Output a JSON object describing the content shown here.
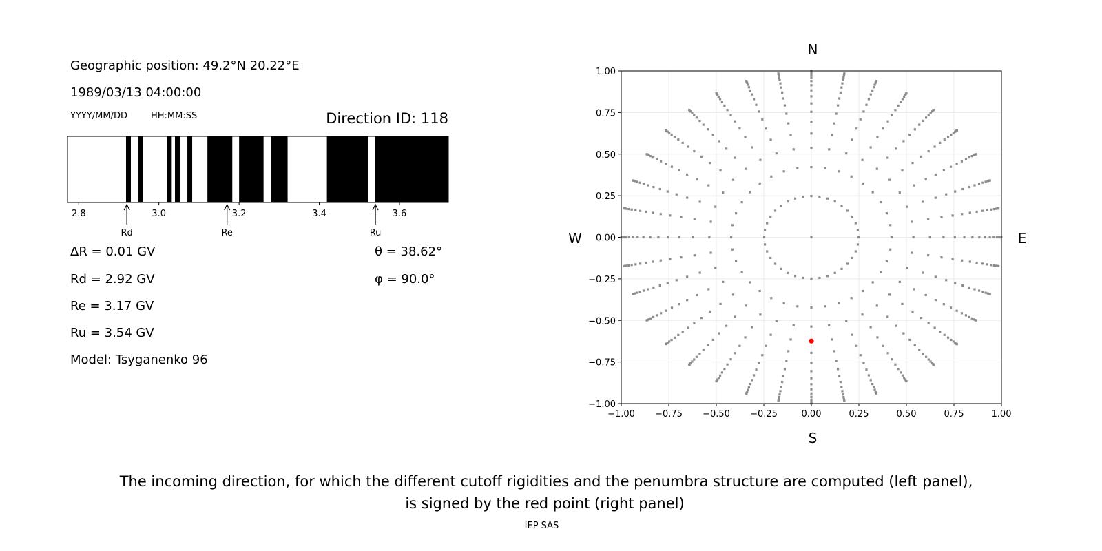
{
  "left_panel": {
    "geo_position": "Geographic position: 49.2°N 20.22°E",
    "datetime": "1989/03/13 04:00:00",
    "date_format_label": "YYYY/MM/DD",
    "time_format_label": "HH:MM:SS",
    "direction_id": "Direction ID: 118",
    "delta_r": "ΔR = 0.01 GV",
    "rd": "Rd = 2.92 GV",
    "re": "Re = 3.17 GV",
    "ru": "Ru = 3.54 GV",
    "model": "Model: Tsyganenko 96",
    "theta": "θ = 38.62°",
    "phi": "φ = 90.0°"
  },
  "caption": {
    "line1": "The incoming direction, for which the different cutoff rigidities and the penumbra structure are computed (left panel),",
    "line2": "is signed by the red point (right panel)",
    "credit": "IEP SAS"
  },
  "chart_data": [
    {
      "type": "bar",
      "description_kind": "penumbra",
      "xlim": [
        2.772,
        3.722
      ],
      "xticks": [
        "2.8",
        "3.0",
        "3.2",
        "3.4",
        "3.6"
      ],
      "forbidden_bands_black": [
        [
          2.918,
          2.93
        ],
        [
          2.949,
          2.96
        ],
        [
          3.02,
          3.032
        ],
        [
          3.04,
          3.052
        ],
        [
          3.071,
          3.083
        ],
        [
          3.121,
          3.183
        ],
        [
          3.2,
          3.261
        ],
        [
          3.279,
          3.321
        ],
        [
          3.419,
          3.521
        ],
        [
          3.539,
          3.722
        ]
      ],
      "markers": [
        {
          "label": "Rd",
          "value": 2.92
        },
        {
          "label": "Re",
          "value": 3.17
        },
        {
          "label": "Ru",
          "value": 3.54
        }
      ],
      "colors": {
        "forbidden": "#000000",
        "allowed": "#ffffff"
      }
    },
    {
      "type": "scatter",
      "xlim": [
        -1.0,
        1.0
      ],
      "ylim": [
        -1.0,
        1.0
      ],
      "xticks": [
        "−1.00",
        "−0.75",
        "−0.50",
        "−0.25",
        "0.00",
        "0.25",
        "0.50",
        "0.75",
        "1.00"
      ],
      "yticks": [
        "−1.00",
        "−0.75",
        "−0.50",
        "−0.25",
        "0.00",
        "0.25",
        "0.50",
        "0.75",
        "1.00"
      ],
      "grid": true,
      "compass": {
        "north": "N",
        "south": "S",
        "west": "W",
        "east": "E"
      },
      "directions": {
        "theta_deg": [
          0,
          14.36,
          24.95,
          32.47,
          38.62,
          44.05,
          48.99,
          53.58,
          57.91,
          62.05,
          66.03,
          69.89,
          73.67,
          77.36,
          81.01,
          84.62,
          88.21
        ],
        "phi_step_deg": 10,
        "projection": "r = sin(theta)"
      },
      "selected": {
        "theta_deg": 38.62,
        "phi_deg": 90.0
      },
      "colors": {
        "points": "#8c8c8c",
        "selected": "#ff0000",
        "grid": "#ebebeb"
      }
    }
  ]
}
